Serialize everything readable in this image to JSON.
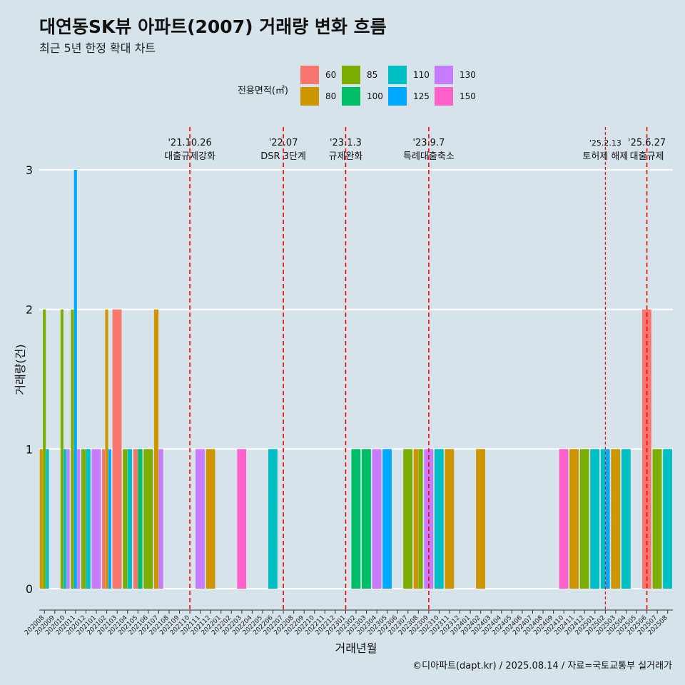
{
  "title": "대연동SK뷰 아파트(2007) 거래량 변화 흐름",
  "subtitle": "최근 5년 한정 확대 차트",
  "caption": "©디아파트(dapt.kr) / 2025.08.14 / 자료=국토교통부 실거래가",
  "legend": {
    "title": "전용면적(㎡)",
    "items": [
      {
        "label": "60",
        "color": "#F8766D"
      },
      {
        "label": "80",
        "color": "#CD9600"
      },
      {
        "label": "85",
        "color": "#7CAE00"
      },
      {
        "label": "100",
        "color": "#00BE67"
      },
      {
        "label": "110",
        "color": "#00BFC4"
      },
      {
        "label": "125",
        "color": "#00A9FF"
      },
      {
        "label": "130",
        "color": "#C77CFF"
      },
      {
        "label": "150",
        "color": "#FF61CC"
      }
    ]
  },
  "chart_data": {
    "type": "bar",
    "xlabel": "거래년월",
    "ylabel": "거래량(건)",
    "ylim": [
      0,
      3
    ],
    "yticks": [
      0,
      1,
      2,
      3
    ],
    "grid": true,
    "categories": [
      "202008",
      "202009",
      "202010",
      "202011",
      "202012",
      "202101",
      "202102",
      "202103",
      "202104",
      "202105",
      "202106",
      "202107",
      "202108",
      "202109",
      "202110",
      "202111",
      "202112",
      "202201",
      "202202",
      "202203",
      "202204",
      "202205",
      "202206",
      "202207",
      "202208",
      "202209",
      "202210",
      "202211",
      "202212",
      "202301",
      "202302",
      "202303",
      "202304",
      "202305",
      "202306",
      "202307",
      "202308",
      "202309",
      "202310",
      "202311",
      "202312",
      "202401",
      "202402",
      "202403",
      "202404",
      "202405",
      "202406",
      "202407",
      "202408",
      "202409",
      "202410",
      "202411",
      "202412",
      "202501",
      "202502",
      "202503",
      "202504",
      "202505",
      "202506",
      "202507",
      "202508"
    ],
    "series": [
      {
        "name": "60",
        "color": "#F8766D",
        "values": [
          0,
          0,
          0,
          0,
          0,
          0,
          1,
          2,
          0,
          1,
          0,
          0,
          0,
          0,
          0,
          0,
          0,
          0,
          0,
          0,
          0,
          0,
          0,
          0,
          0,
          0,
          0,
          0,
          0,
          0,
          0,
          0,
          0,
          0,
          0,
          0,
          0,
          0,
          0,
          0,
          0,
          0,
          0,
          0,
          0,
          0,
          0,
          0,
          0,
          0,
          0,
          0,
          0,
          0,
          0,
          0,
          0,
          0,
          2,
          0,
          0
        ]
      },
      {
        "name": "80",
        "color": "#CD9600",
        "values": [
          1,
          0,
          0,
          0,
          0,
          0,
          2,
          0,
          0,
          0,
          0,
          2,
          0,
          0,
          0,
          0,
          1,
          0,
          0,
          0,
          0,
          0,
          0,
          0,
          0,
          0,
          0,
          0,
          0,
          0,
          0,
          0,
          0,
          0,
          0,
          0,
          1,
          0,
          0,
          1,
          0,
          0,
          1,
          0,
          0,
          0,
          0,
          0,
          0,
          0,
          0,
          1,
          0,
          0,
          0,
          1,
          0,
          0,
          0,
          0,
          0
        ]
      },
      {
        "name": "85",
        "color": "#7CAE00",
        "values": [
          2,
          0,
          2,
          2,
          1,
          0,
          0,
          0,
          1,
          0,
          1,
          0,
          0,
          0,
          0,
          0,
          0,
          0,
          0,
          0,
          0,
          0,
          0,
          0,
          0,
          0,
          0,
          0,
          0,
          0,
          0,
          0,
          0,
          0,
          0,
          1,
          1,
          0,
          0,
          0,
          0,
          0,
          0,
          0,
          0,
          0,
          0,
          0,
          0,
          0,
          0,
          0,
          1,
          0,
          0,
          0,
          0,
          0,
          0,
          1,
          0
        ]
      },
      {
        "name": "100",
        "color": "#00BE67",
        "values": [
          0,
          0,
          0,
          0,
          0,
          0,
          0,
          0,
          0,
          1,
          0,
          0,
          0,
          0,
          0,
          0,
          0,
          0,
          0,
          0,
          0,
          0,
          0,
          0,
          0,
          0,
          0,
          0,
          0,
          0,
          1,
          1,
          0,
          0,
          0,
          0,
          0,
          0,
          0,
          0,
          0,
          0,
          0,
          0,
          0,
          0,
          0,
          0,
          0,
          0,
          0,
          0,
          0,
          0,
          0,
          0,
          0,
          0,
          0,
          0,
          0
        ]
      },
      {
        "name": "110",
        "color": "#00BFC4",
        "values": [
          1,
          0,
          1,
          0,
          1,
          0,
          0,
          0,
          1,
          0,
          0,
          0,
          0,
          0,
          0,
          0,
          0,
          0,
          0,
          0,
          0,
          0,
          1,
          0,
          0,
          0,
          0,
          0,
          0,
          0,
          0,
          0,
          0,
          0,
          0,
          0,
          0,
          0,
          1,
          0,
          0,
          0,
          0,
          0,
          0,
          0,
          0,
          0,
          0,
          0,
          0,
          0,
          0,
          1,
          1,
          0,
          1,
          0,
          0,
          0,
          1
        ]
      },
      {
        "name": "125",
        "color": "#00A9FF",
        "values": [
          0,
          0,
          0,
          3,
          0,
          0,
          1,
          0,
          0,
          0,
          0,
          0,
          0,
          0,
          0,
          0,
          0,
          0,
          0,
          0,
          0,
          0,
          0,
          0,
          0,
          0,
          0,
          0,
          0,
          0,
          0,
          0,
          0,
          1,
          0,
          0,
          0,
          0,
          0,
          0,
          0,
          0,
          0,
          0,
          0,
          0,
          0,
          0,
          0,
          0,
          0,
          0,
          0,
          0,
          1,
          0,
          0,
          0,
          0,
          0,
          0
        ]
      },
      {
        "name": "130",
        "color": "#C77CFF",
        "values": [
          0,
          0,
          1,
          1,
          0,
          1,
          0,
          0,
          0,
          0,
          0,
          1,
          0,
          0,
          0,
          1,
          0,
          0,
          0,
          0,
          0,
          0,
          0,
          0,
          0,
          0,
          0,
          0,
          0,
          0,
          0,
          0,
          1,
          0,
          0,
          0,
          0,
          1,
          0,
          0,
          0,
          0,
          0,
          0,
          0,
          0,
          0,
          0,
          0,
          0,
          0,
          0,
          0,
          0,
          0,
          0,
          0,
          0,
          0,
          0,
          0
        ]
      },
      {
        "name": "150",
        "color": "#FF61CC",
        "values": [
          0,
          0,
          0,
          0,
          0,
          0,
          0,
          0,
          0,
          0,
          0,
          0,
          0,
          0,
          0,
          0,
          0,
          0,
          0,
          1,
          0,
          0,
          0,
          0,
          0,
          0,
          0,
          0,
          0,
          0,
          0,
          0,
          0,
          0,
          0,
          0,
          0,
          0,
          0,
          0,
          0,
          0,
          0,
          0,
          0,
          0,
          0,
          0,
          0,
          0,
          1,
          0,
          0,
          0,
          0,
          0,
          0,
          0,
          0,
          0,
          0
        ]
      }
    ],
    "annotations": [
      {
        "x": "202110",
        "date": "'21.10.26",
        "label": "대출규제강화",
        "line_color": "#FF0000",
        "style": "dashed",
        "small": false
      },
      {
        "x": "202207",
        "date": "'22.07",
        "label": "DSR 3단계",
        "line_color": "#FF0000",
        "style": "dashed",
        "small": false
      },
      {
        "x": "202301",
        "date": "'23.1.3",
        "label": "규제완화",
        "line_color": "#FF0000",
        "style": "dashed",
        "small": false
      },
      {
        "x": "202309",
        "date": "'23.9.7",
        "label": "특례대출축소",
        "line_color": "#FF0000",
        "style": "dashed",
        "small": false
      },
      {
        "x": "202502",
        "date": "'25.2.13",
        "label": "토허제 해제",
        "line_color": "#FF0000",
        "style": "dashed",
        "small": true
      },
      {
        "x": "202506",
        "date": "'25.6.27",
        "label": "대출규제",
        "line_color": "#FF0000",
        "style": "dashed",
        "small": false
      }
    ]
  }
}
